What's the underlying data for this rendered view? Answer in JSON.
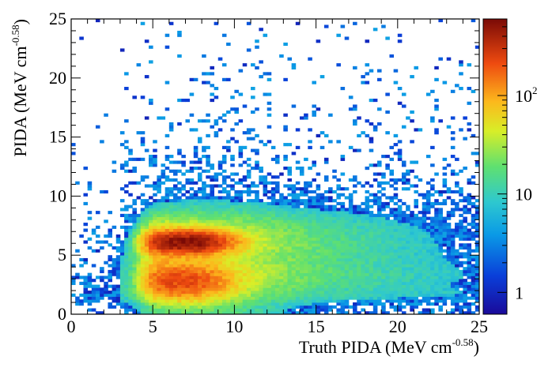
{
  "chart_data": {
    "type": "heatmap",
    "title": "",
    "xlabel": {
      "main": "Truth PIDA (MeV cm",
      "sup": "-0.58",
      "close": ")"
    },
    "ylabel": {
      "main": "PIDA (MeV cm",
      "sup": "-0.58",
      "close": ")"
    },
    "xlim": [
      0,
      25
    ],
    "ylim": [
      0,
      25
    ],
    "x_ticks": [
      0,
      5,
      10,
      15,
      20,
      25
    ],
    "y_ticks": [
      0,
      5,
      10,
      15,
      20,
      25
    ],
    "bins": {
      "x": 100,
      "y": 100,
      "x_range": [
        0,
        25
      ],
      "y_range": [
        0,
        25
      ]
    },
    "colorbar": {
      "scale": "log",
      "range": [
        0.6,
        600
      ],
      "palette": "rainbow (blue-cyan-green-yellow-red-dark red)",
      "tick_labels": [
        {
          "value": 1,
          "base": "1",
          "exp": ""
        },
        {
          "value": 10,
          "base": "10",
          "exp": ""
        },
        {
          "value": 100,
          "base": "10",
          "exp": "2"
        }
      ]
    },
    "features": [
      {
        "description": "dense core",
        "x_range": [
          5.5,
          9
        ],
        "y_value": 6.1,
        "peak_counts": 500
      },
      {
        "description": "lower band",
        "x_range": [
          4.5,
          9
        ],
        "y_value": 2.8,
        "peak_counts": 180
      },
      {
        "description": "band tails toward large truth PIDA",
        "x_range": [
          9,
          25
        ],
        "y_values": [
          6,
          3
        ]
      },
      {
        "description": "sparse halo with low counts",
        "x_range": [
          0,
          25
        ],
        "y_range": [
          0,
          25
        ],
        "counts": [
          1,
          5
        ]
      }
    ]
  }
}
